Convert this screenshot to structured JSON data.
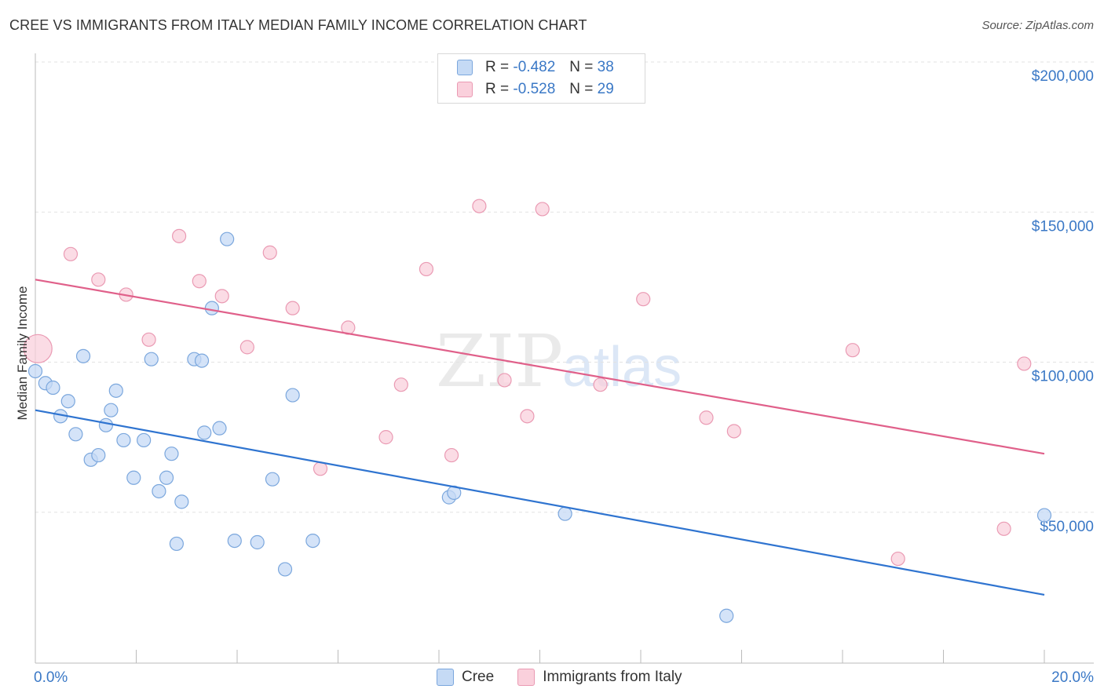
{
  "header": {
    "title": "CREE VS IMMIGRANTS FROM ITALY MEDIAN FAMILY INCOME CORRELATION CHART",
    "source": "Source: ZipAtlas.com"
  },
  "legend": {
    "r_label": "R =",
    "n_label": "N =",
    "rows": [
      {
        "r": "-0.482",
        "n": "38"
      },
      {
        "r": "-0.528",
        "n": "29"
      }
    ]
  },
  "colors": {
    "cree_fill": "#c5daf5",
    "cree_stroke": "#7ba7dd",
    "cree_line": "#2f74d0",
    "italy_fill": "#fad0dc",
    "italy_stroke": "#ea9ab3",
    "italy_line": "#e0608a",
    "axis_text": "#3a78c6",
    "grid": "#e2e2e2"
  },
  "chart_data": {
    "type": "scatter",
    "title": "CREE VS IMMIGRANTS FROM ITALY MEDIAN FAMILY INCOME CORRELATION CHART",
    "xlabel": "",
    "ylabel": "Median Family Income",
    "xlim": [
      0,
      20
    ],
    "ylim": [
      0,
      210000
    ],
    "x_tick_labels": [
      "0.0%",
      "20.0%"
    ],
    "y_ticks": [
      50000,
      100000,
      150000,
      200000
    ],
    "y_tick_labels": [
      "$50,000",
      "$100,000",
      "$150,000",
      "$200,000"
    ],
    "watermark": "ZIPatlas",
    "series": [
      {
        "name": "Cree",
        "R": -0.482,
        "N": 38,
        "trend": {
          "x": [
            0,
            20
          ],
          "y": [
            84000,
            22500
          ]
        },
        "points": [
          {
            "x": 0.0,
            "y": 97000
          },
          {
            "x": 0.2,
            "y": 93000
          },
          {
            "x": 0.35,
            "y": 91500
          },
          {
            "x": 0.5,
            "y": 82000
          },
          {
            "x": 0.65,
            "y": 87000
          },
          {
            "x": 0.8,
            "y": 76000
          },
          {
            "x": 0.95,
            "y": 102000
          },
          {
            "x": 1.1,
            "y": 67500
          },
          {
            "x": 1.25,
            "y": 69000
          },
          {
            "x": 1.4,
            "y": 79000
          },
          {
            "x": 1.5,
            "y": 84000
          },
          {
            "x": 1.6,
            "y": 90500
          },
          {
            "x": 1.75,
            "y": 74000
          },
          {
            "x": 1.95,
            "y": 61500
          },
          {
            "x": 2.15,
            "y": 74000
          },
          {
            "x": 2.3,
            "y": 101000
          },
          {
            "x": 2.45,
            "y": 57000
          },
          {
            "x": 2.6,
            "y": 61500
          },
          {
            "x": 2.7,
            "y": 69500
          },
          {
            "x": 2.8,
            "y": 39500
          },
          {
            "x": 2.9,
            "y": 53500
          },
          {
            "x": 3.15,
            "y": 101000
          },
          {
            "x": 3.3,
            "y": 100500
          },
          {
            "x": 3.35,
            "y": 76500
          },
          {
            "x": 3.5,
            "y": 118000
          },
          {
            "x": 3.65,
            "y": 78000
          },
          {
            "x": 3.8,
            "y": 141000
          },
          {
            "x": 3.95,
            "y": 40500
          },
          {
            "x": 4.4,
            "y": 40000
          },
          {
            "x": 4.7,
            "y": 61000
          },
          {
            "x": 4.95,
            "y": 31000
          },
          {
            "x": 5.1,
            "y": 89000
          },
          {
            "x": 5.5,
            "y": 40500
          },
          {
            "x": 8.2,
            "y": 55000
          },
          {
            "x": 8.3,
            "y": 56500
          },
          {
            "x": 10.5,
            "y": 49500
          },
          {
            "x": 13.7,
            "y": 15500
          },
          {
            "x": 20.0,
            "y": 49000
          }
        ]
      },
      {
        "name": "Immigrants from Italy",
        "R": -0.528,
        "N": 29,
        "trend": {
          "x": [
            0,
            20
          ],
          "y": [
            127500,
            69500
          ]
        },
        "points": [
          {
            "x": 0.05,
            "y": 104500,
            "big": true
          },
          {
            "x": 0.7,
            "y": 136000
          },
          {
            "x": 1.25,
            "y": 127500
          },
          {
            "x": 1.8,
            "y": 122500
          },
          {
            "x": 2.25,
            "y": 107500
          },
          {
            "x": 2.85,
            "y": 142000
          },
          {
            "x": 3.25,
            "y": 127000
          },
          {
            "x": 3.7,
            "y": 122000
          },
          {
            "x": 4.2,
            "y": 105000
          },
          {
            "x": 4.65,
            "y": 136500
          },
          {
            "x": 5.1,
            "y": 118000
          },
          {
            "x": 5.65,
            "y": 64500
          },
          {
            "x": 6.2,
            "y": 111500
          },
          {
            "x": 6.95,
            "y": 75000
          },
          {
            "x": 7.25,
            "y": 92500
          },
          {
            "x": 7.75,
            "y": 131000
          },
          {
            "x": 8.25,
            "y": 69000
          },
          {
            "x": 8.8,
            "y": 152000
          },
          {
            "x": 9.3,
            "y": 94000
          },
          {
            "x": 9.75,
            "y": 82000
          },
          {
            "x": 10.05,
            "y": 151000
          },
          {
            "x": 11.2,
            "y": 92500
          },
          {
            "x": 12.05,
            "y": 121000
          },
          {
            "x": 13.3,
            "y": 81500
          },
          {
            "x": 13.85,
            "y": 77000
          },
          {
            "x": 16.2,
            "y": 104000
          },
          {
            "x": 17.1,
            "y": 34500
          },
          {
            "x": 19.2,
            "y": 44500
          },
          {
            "x": 19.6,
            "y": 99500
          }
        ]
      }
    ]
  },
  "bottom_legend": {
    "items": [
      {
        "label": "Cree"
      },
      {
        "label": "Immigrants from Italy"
      }
    ]
  }
}
